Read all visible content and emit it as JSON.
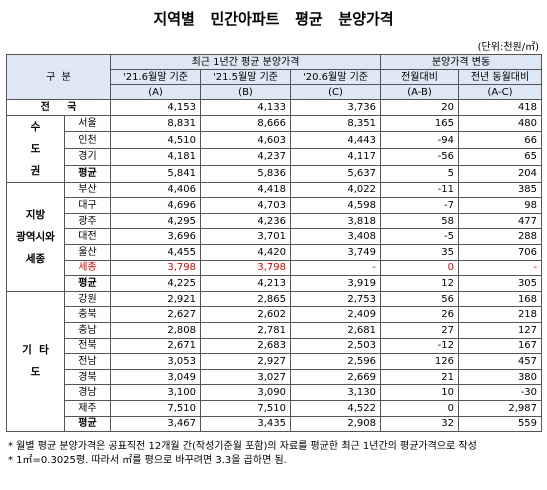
{
  "title": "지역별   민간아파트   평균   분양가격",
  "unit": "(단위:천원/㎡)",
  "header": {
    "gubun": "구  분",
    "group1": "최근 1년간 평균 분양가격",
    "group2": "분양가격 변동",
    "columns": [
      {
        "label": "'21.6월말 기준",
        "sub": "(A)"
      },
      {
        "label": "'21.5월말 기준",
        "sub": "(B)"
      },
      {
        "label": "'20.6월말 기준",
        "sub": "(C)"
      },
      {
        "label": "전월대비",
        "sub": "(A-B)"
      },
      {
        "label": "전년 동월대비",
        "sub": "(A-C)"
      }
    ]
  },
  "national": {
    "label": "전     국",
    "values": [
      "4,153",
      "4,133",
      "3,736",
      "20",
      "418"
    ]
  },
  "groups": [
    {
      "label_lines": [
        "수",
        "도",
        "권"
      ],
      "rows": [
        {
          "region": "서울",
          "values": [
            "8,831",
            "8,666",
            "8,351",
            "165",
            "480"
          ]
        },
        {
          "region": "인천",
          "values": [
            "4,510",
            "4,603",
            "4,443",
            "-94",
            "66"
          ]
        },
        {
          "region": "경기",
          "values": [
            "4,181",
            "4,237",
            "4,117",
            "-56",
            "65"
          ]
        },
        {
          "region": "평균",
          "values": [
            "5,841",
            "5,836",
            "5,637",
            "5",
            "204"
          ]
        }
      ]
    },
    {
      "label_lines": [
        "지방",
        "광역시와",
        "세종"
      ],
      "rows": [
        {
          "region": "부산",
          "values": [
            "4,406",
            "4,418",
            "4,022",
            "-11",
            "385"
          ]
        },
        {
          "region": "대구",
          "values": [
            "4,696",
            "4,703",
            "4,598",
            "-7",
            "98"
          ]
        },
        {
          "region": "광주",
          "values": [
            "4,295",
            "4,236",
            "3,818",
            "58",
            "477"
          ]
        },
        {
          "region": "대전",
          "values": [
            "3,696",
            "3,701",
            "3,408",
            "-5",
            "288"
          ]
        },
        {
          "region": "울산",
          "values": [
            "4,455",
            "4,420",
            "3,749",
            "35",
            "706"
          ]
        },
        {
          "region": "세종",
          "values": [
            "3,798",
            "3,798",
            "-",
            "0",
            "-"
          ],
          "color": "#e00000"
        },
        {
          "region": "평균",
          "values": [
            "4,225",
            "4,213",
            "3,919",
            "12",
            "305"
          ]
        }
      ]
    },
    {
      "label_lines": [
        "기  타",
        "도"
      ],
      "rows": [
        {
          "region": "강원",
          "values": [
            "2,921",
            "2,865",
            "2,753",
            "56",
            "168"
          ]
        },
        {
          "region": "충북",
          "values": [
            "2,627",
            "2,602",
            "2,409",
            "26",
            "218"
          ]
        },
        {
          "region": "충남",
          "values": [
            "2,808",
            "2,781",
            "2,681",
            "27",
            "127"
          ]
        },
        {
          "region": "전북",
          "values": [
            "2,671",
            "2,683",
            "2,503",
            "-12",
            "167"
          ]
        },
        {
          "region": "전남",
          "values": [
            "3,053",
            "2,927",
            "2,596",
            "126",
            "457"
          ]
        },
        {
          "region": "경북",
          "values": [
            "3,049",
            "3,027",
            "2,669",
            "21",
            "380"
          ]
        },
        {
          "region": "경남",
          "values": [
            "3,100",
            "3,090",
            "3,130",
            "10",
            "-30"
          ]
        },
        {
          "region": "제주",
          "values": [
            "7,510",
            "7,510",
            "4,522",
            "0",
            "2,987"
          ]
        },
        {
          "region": "평균",
          "values": [
            "3,467",
            "3,435",
            "2,908",
            "32",
            "559"
          ]
        }
      ]
    }
  ],
  "notes": [
    "* 월별 평균 분양가격은 공표직전 12개월 간(작성기준월 포함)의 자료를 평균한 최근 1년간의 평균가격으로 작성",
    "* 1㎡=0.3025평. 따라서 ㎡를 평으로 바꾸려면 3.3을 곱하면 됨."
  ]
}
